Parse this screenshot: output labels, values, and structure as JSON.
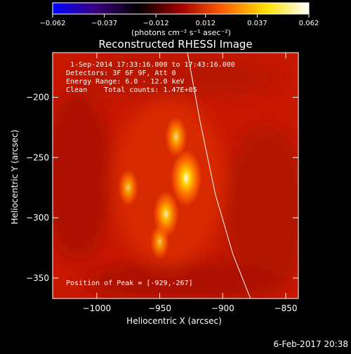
{
  "chart_data": {
    "type": "heatmap",
    "title": "Reconstructed RHESSI Image",
    "xlabel": "Heliocentric X (arcsec)",
    "ylabel": "Heliocentric Y (arcsec)",
    "xlim": [
      -1035,
      -840
    ],
    "ylim": [
      -367,
      -163
    ],
    "x_ticks": [
      -1000,
      -950,
      -900,
      -850
    ],
    "x_tick_labels": [
      "−1000",
      "−950",
      "−900",
      "−850"
    ],
    "y_ticks": [
      -200,
      -250,
      -300,
      -350
    ],
    "y_tick_labels": [
      "−200",
      "−250",
      "−300",
      "−350"
    ],
    "colorbar": {
      "range": [
        -0.062,
        0.062
      ],
      "ticks": [
        -0.062,
        -0.037,
        -0.012,
        0.012,
        0.037,
        0.062
      ],
      "tick_labels": [
        "−0.062",
        "−0.037",
        "−0.012",
        "0.012",
        "0.037",
        "0.062"
      ],
      "unit": "(photons cm⁻² s⁻¹ asec⁻²)",
      "colors": [
        "#0000ff",
        "#3a0080",
        "#000000",
        "#a00000",
        "#ff6000",
        "#ffe000",
        "#ffffff"
      ]
    },
    "annotations": [
      "1-Sep-2014 17:33:16.000 to 17:43:16.000",
      "Detectors: 3F 6F 9F, Att 0",
      "Energy Range: 6.0 - 12.0 keV",
      "Clean    Total counts: 1.47E+05",
      "Position of Peak = [-929,-267]"
    ],
    "sources": [
      {
        "x": -929,
        "y": -267,
        "level": 1.0
      },
      {
        "x": -945,
        "y": -297,
        "level": 0.72
      },
      {
        "x": -975,
        "y": -275,
        "level": 0.45
      },
      {
        "x": -937,
        "y": -233,
        "level": 0.55
      },
      {
        "x": -950,
        "y": -320,
        "level": 0.4
      }
    ],
    "limb_arc": [
      [
        -928,
        -163
      ],
      [
        -918,
        -220
      ],
      [
        -906,
        -280
      ],
      [
        -892,
        -330
      ],
      [
        -878,
        -367
      ]
    ],
    "grid": false
  },
  "footer": {
    "date": "6-Feb-2017 20:38"
  }
}
